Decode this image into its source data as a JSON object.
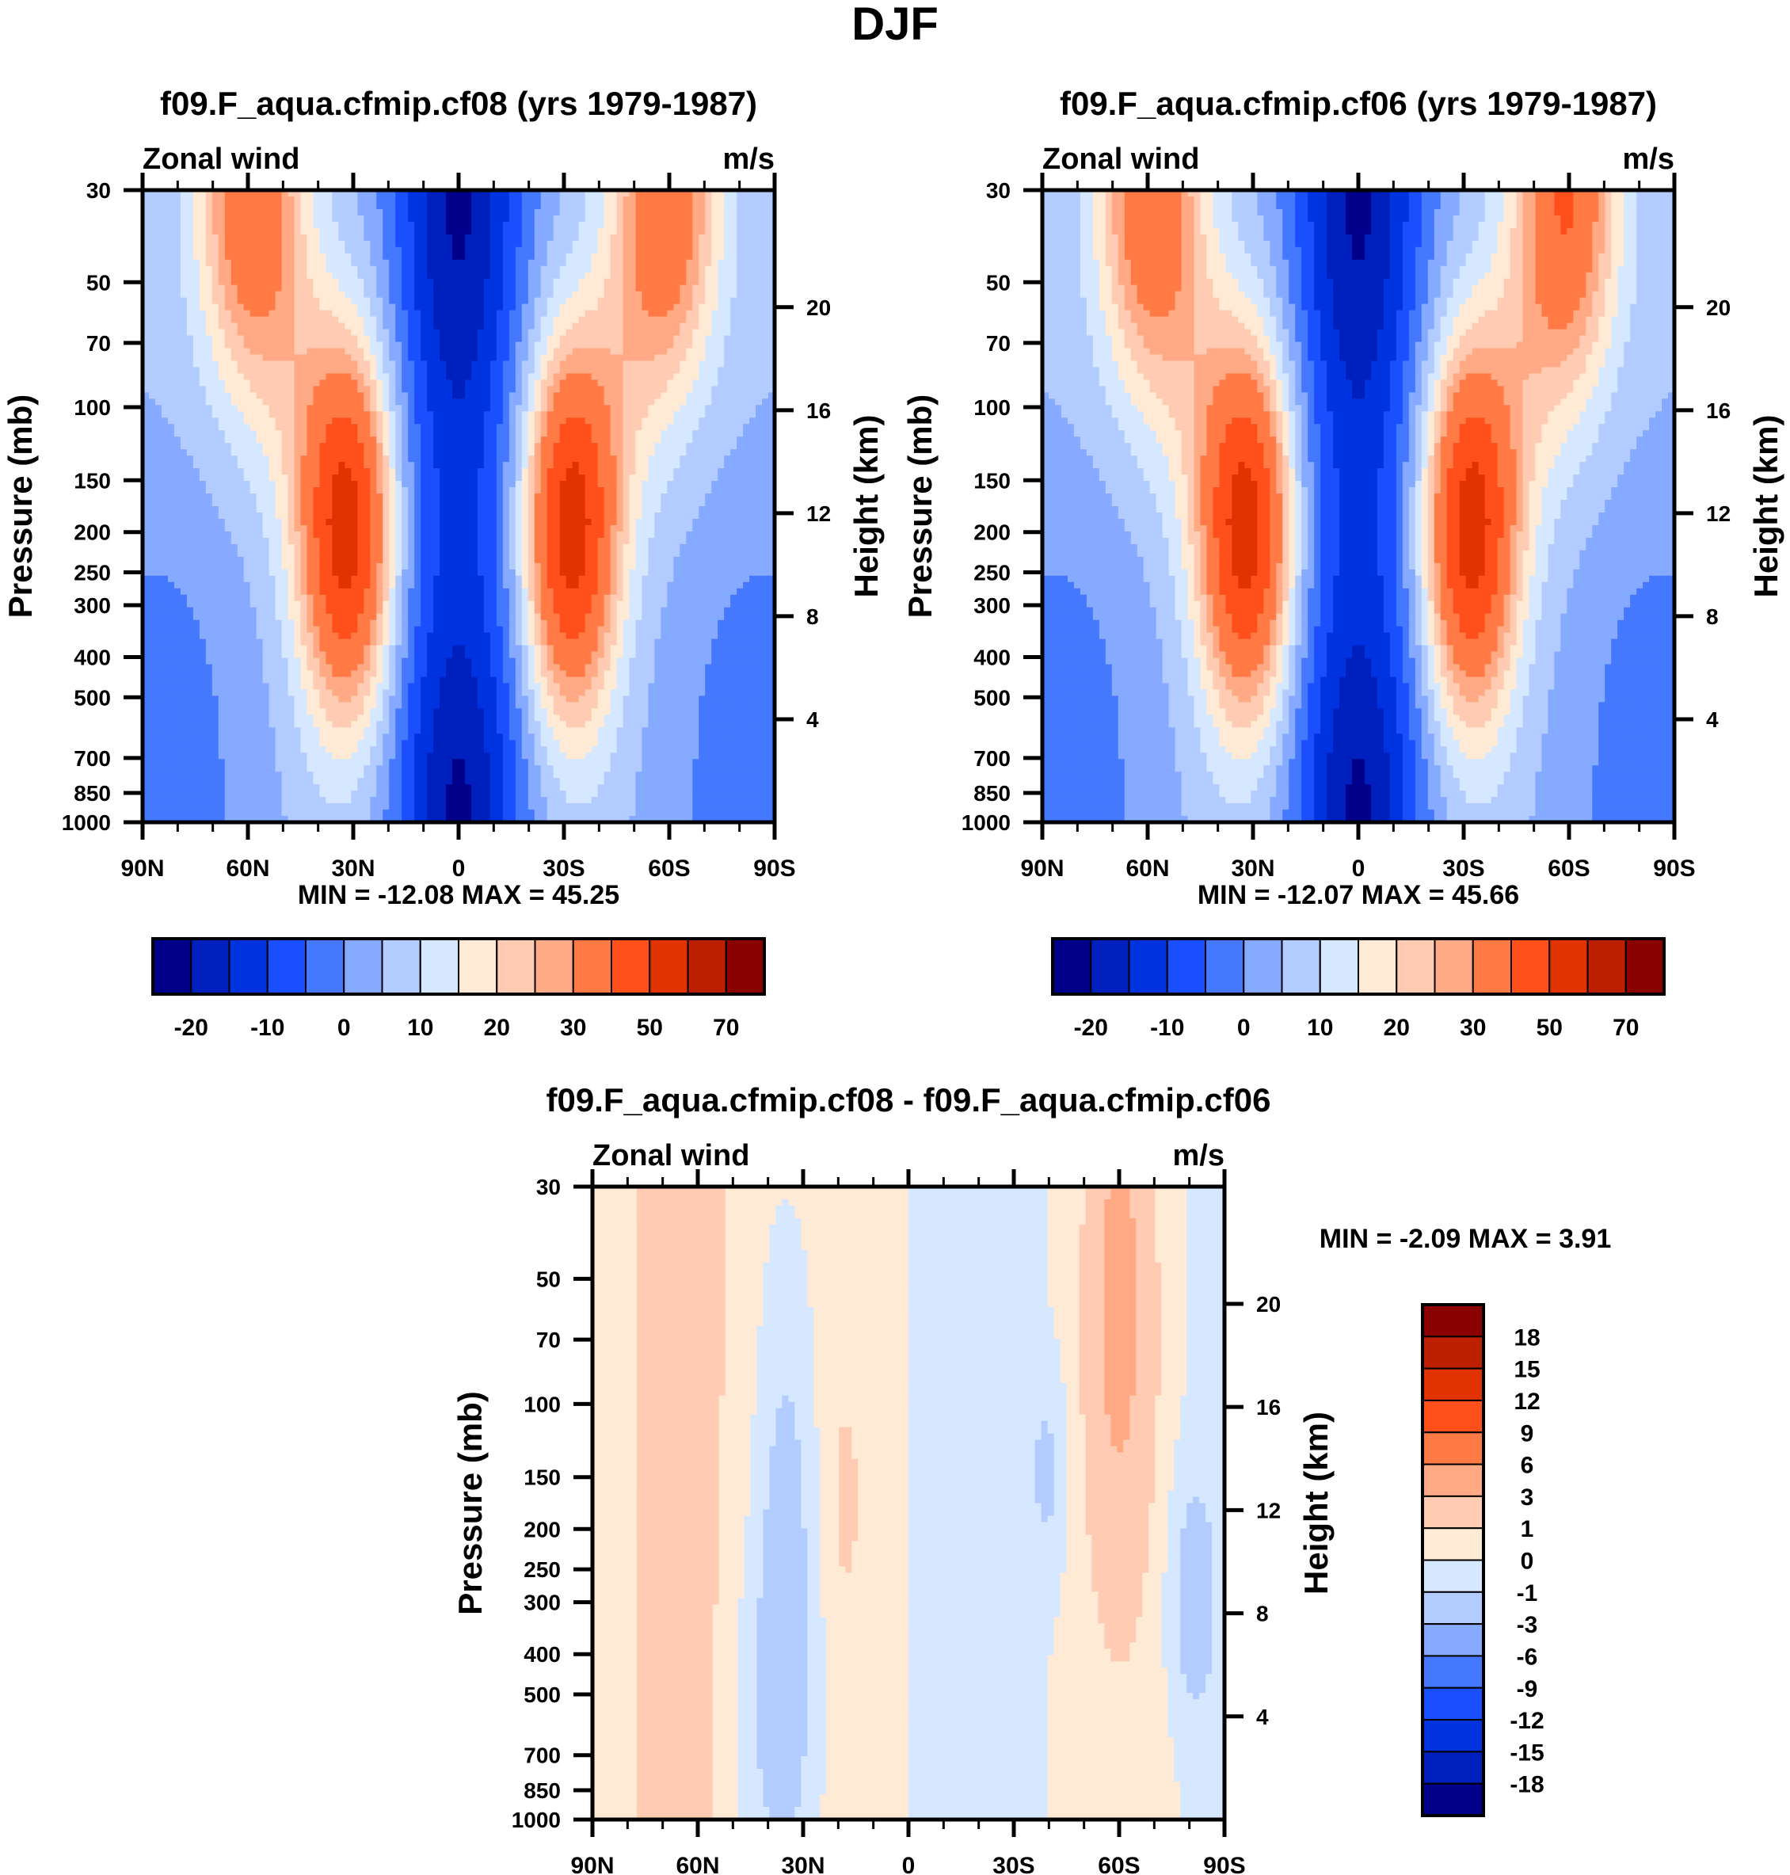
{
  "chart_data": {
    "type": "heatmap",
    "title": "DJF",
    "colors": {
      "full": [
        "#00008b",
        "#0020bd",
        "#0033e0",
        "#1a4fff",
        "#4478ff",
        "#85aaff",
        "#b3ccff",
        "#d6e8ff",
        "#ffead6",
        "#ffccb3",
        "#ffaa85",
        "#ff7a44",
        "#ff4f1a",
        "#e03300",
        "#bd2000",
        "#8b0000"
      ],
      "diff": [
        "#00008b",
        "#0020bd",
        "#0033e0",
        "#1a4fff",
        "#4478ff",
        "#85aaff",
        "#b3ccff",
        "#d6e8ff",
        "#ffead6",
        "#ffccb3",
        "#ffaa85",
        "#ff7a44",
        "#ff4f1a",
        "#e03300",
        "#bd2000",
        "#8b0000"
      ]
    },
    "panels": [
      {
        "id": "cf08",
        "title": "f09.F_aqua.cfmip.cf08 (yrs 1979-1987)",
        "left_label": "Zonal wind",
        "right_label": "m/s",
        "ylabel": "Pressure (mb)",
        "y2label": "Height (km)",
        "stats": "MIN = -12.08  MAX =  45.25",
        "min": -12.08,
        "max": 45.25,
        "xticks": [
          "90N",
          "60N",
          "30N",
          "0",
          "30S",
          "60S",
          "90S"
        ],
        "yticks": [
          "30",
          "50",
          "70",
          "100",
          "150",
          "200",
          "250",
          "300",
          "400",
          "500",
          "700",
          "850",
          "1000"
        ],
        "y2ticks": [
          "20",
          "16",
          "12",
          "8",
          "4"
        ],
        "levels": [
          -25,
          -20,
          -15,
          -10,
          -5,
          0,
          5,
          10,
          15,
          20,
          25,
          30,
          40,
          50,
          60,
          70,
          80
        ],
        "colorbar_labels": [
          "-20",
          "-10",
          "0",
          "10",
          "20",
          "30",
          "50",
          "70"
        ],
        "colorbar_orientation": "horizontal"
      },
      {
        "id": "cf06",
        "title": "f09.F_aqua.cfmip.cf06 (yrs 1979-1987)",
        "left_label": "Zonal wind",
        "right_label": "m/s",
        "ylabel": "Pressure (mb)",
        "y2label": "Height (km)",
        "stats": "MIN = -12.07  MAX =  45.66",
        "min": -12.07,
        "max": 45.66,
        "xticks": [
          "90N",
          "60N",
          "30N",
          "0",
          "30S",
          "60S",
          "90S"
        ],
        "yticks": [
          "30",
          "50",
          "70",
          "100",
          "150",
          "200",
          "250",
          "300",
          "400",
          "500",
          "700",
          "850",
          "1000"
        ],
        "y2ticks": [
          "20",
          "16",
          "12",
          "8",
          "4"
        ],
        "levels": [
          -25,
          -20,
          -15,
          -10,
          -5,
          0,
          5,
          10,
          15,
          20,
          25,
          30,
          40,
          50,
          60,
          70,
          80
        ],
        "colorbar_labels": [
          "-20",
          "-10",
          "0",
          "10",
          "20",
          "30",
          "50",
          "70"
        ],
        "colorbar_orientation": "horizontal"
      },
      {
        "id": "diff",
        "title": "f09.F_aqua.cfmip.cf08 - f09.F_aqua.cfmip.cf06",
        "left_label": "Zonal wind",
        "right_label": "m/s",
        "ylabel": "Pressure (mb)",
        "y2label": "Height (km)",
        "stats": "MIN =  -2.09  MAX =   3.91",
        "min": -2.09,
        "max": 3.91,
        "xticks": [
          "90N",
          "60N",
          "30N",
          "0",
          "30S",
          "60S",
          "90S"
        ],
        "yticks": [
          "30",
          "50",
          "70",
          "100",
          "150",
          "200",
          "250",
          "300",
          "400",
          "500",
          "700",
          "850",
          "1000"
        ],
        "y2ticks": [
          "20",
          "16",
          "12",
          "8",
          "4"
        ],
        "levels": [
          -21,
          -18,
          -15,
          -12,
          -9,
          -6,
          -3,
          -1,
          0,
          1,
          3,
          6,
          9,
          12,
          15,
          18,
          21
        ],
        "colorbar_labels": [
          "18",
          "15",
          "12",
          "9",
          "6",
          "3",
          "1",
          "0",
          "-1",
          "-3",
          "-6",
          "-9",
          "-12",
          "-15",
          "-18"
        ],
        "colorbar_orientation": "vertical"
      }
    ],
    "x_axis": {
      "range": [
        90,
        -90
      ],
      "units": "latitude (N positive)"
    },
    "y_axis": {
      "range": [
        30,
        1000
      ],
      "scale": "log",
      "units": "mb"
    },
    "y2_axis": {
      "units": "km",
      "ticks_km": [
        20,
        16,
        12,
        8,
        4
      ]
    }
  }
}
